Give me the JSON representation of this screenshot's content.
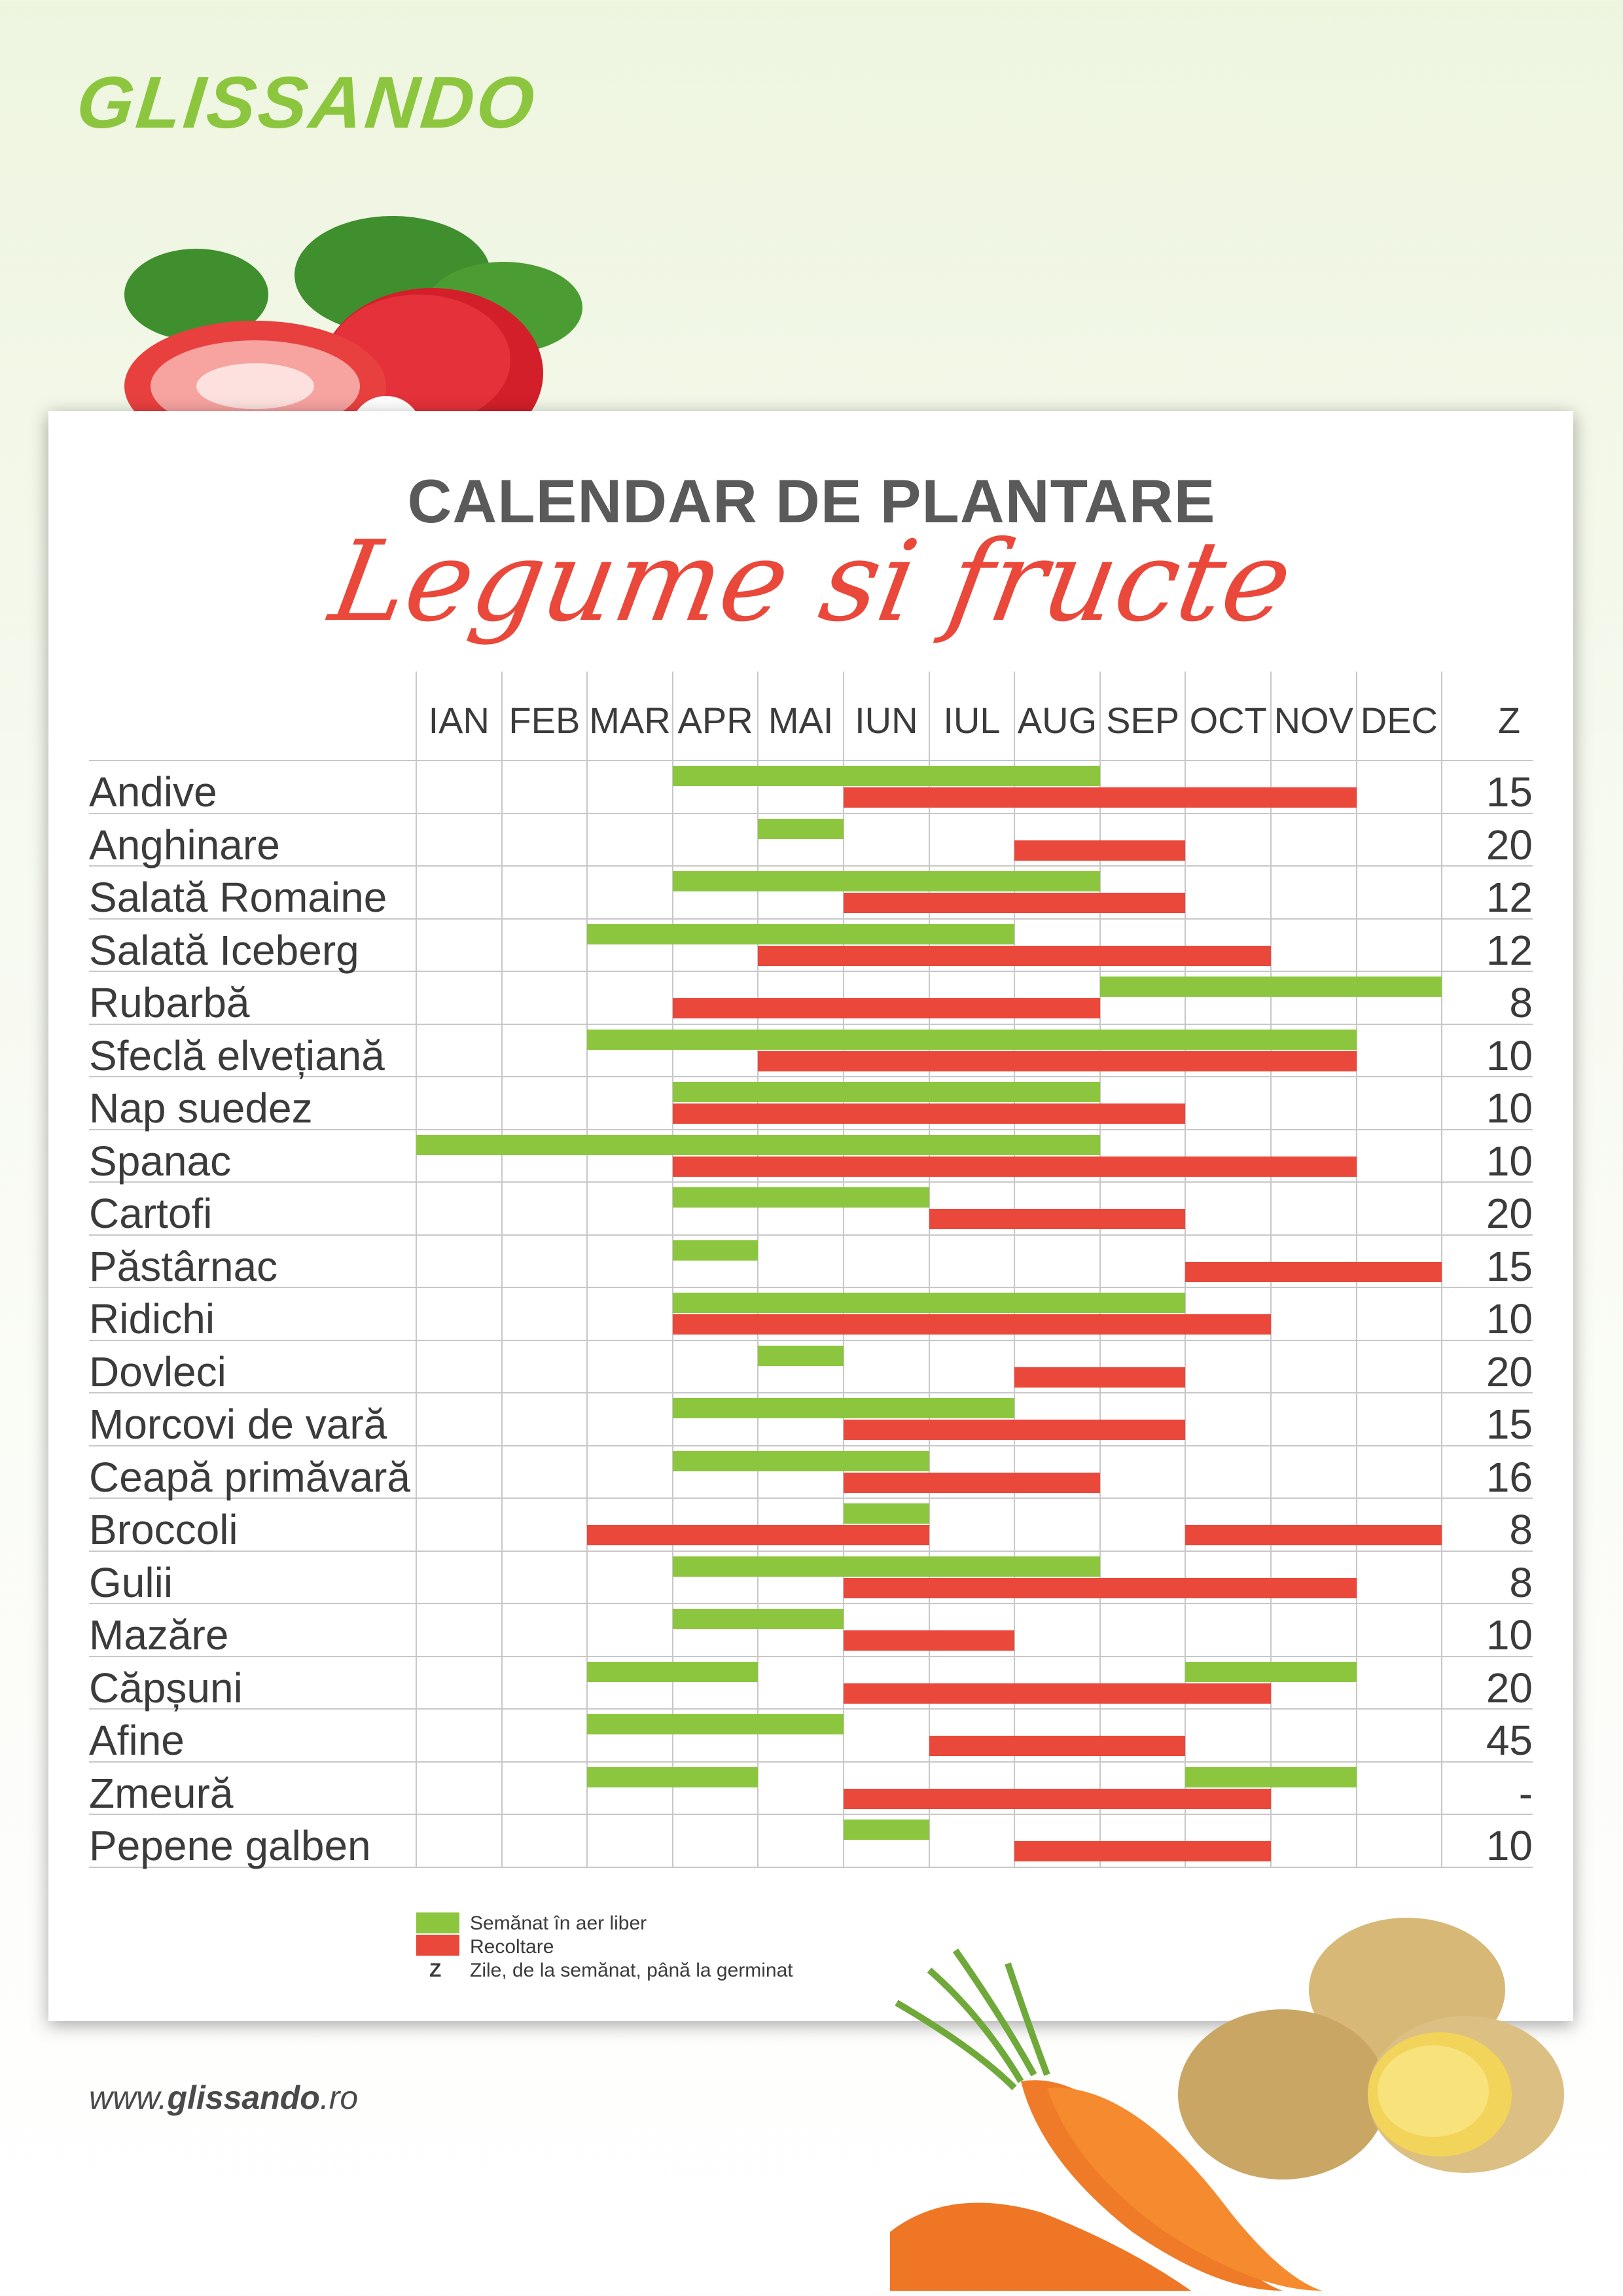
{
  "brand": {
    "logo": "GLISSANDO",
    "website_prefix": "www.",
    "website_brand": "glissando",
    "website_suffix": ".ro"
  },
  "title": {
    "line1": "CALENDAR DE PLANTARE",
    "line2": "Legume si fructe"
  },
  "months": [
    "IAN",
    "FEB",
    "MAR",
    "APR",
    "MAI",
    "IUN",
    "IUL",
    "AUG",
    "SEP",
    "OCT",
    "NOV",
    "DEC"
  ],
  "z_header": "Z",
  "colors": {
    "sow": "#8cc63f",
    "harvest": "#e9483a"
  },
  "rows": [
    {
      "name": "Andive",
      "z": "15",
      "sow": [
        [
          4,
          8
        ]
      ],
      "harvest": [
        [
          6,
          11
        ]
      ]
    },
    {
      "name": "Anghinare",
      "z": "20",
      "sow": [
        [
          5,
          5
        ]
      ],
      "harvest": [
        [
          8,
          9
        ]
      ]
    },
    {
      "name": "Salată Romaine",
      "z": "12",
      "sow": [
        [
          4,
          8
        ]
      ],
      "harvest": [
        [
          6,
          9
        ]
      ]
    },
    {
      "name": "Salată Iceberg",
      "z": "12",
      "sow": [
        [
          3,
          7
        ]
      ],
      "harvest": [
        [
          5,
          10
        ]
      ]
    },
    {
      "name": "Rubarbă",
      "z": "8",
      "sow": [
        [
          9,
          12
        ]
      ],
      "harvest": [
        [
          4,
          8
        ]
      ]
    },
    {
      "name": "Sfeclă elvețiană",
      "z": "10",
      "sow": [
        [
          3,
          11
        ]
      ],
      "harvest": [
        [
          5,
          11
        ]
      ]
    },
    {
      "name": "Nap suedez",
      "z": "10",
      "sow": [
        [
          4,
          8
        ]
      ],
      "harvest": [
        [
          4,
          9
        ]
      ]
    },
    {
      "name": "Spanac",
      "z": "10",
      "sow": [
        [
          1,
          8
        ]
      ],
      "harvest": [
        [
          4,
          11
        ]
      ]
    },
    {
      "name": "Cartofi",
      "z": "20",
      "sow": [
        [
          4,
          6
        ]
      ],
      "harvest": [
        [
          7,
          9
        ]
      ]
    },
    {
      "name": "Păstârnac",
      "z": "15",
      "sow": [
        [
          4,
          4
        ]
      ],
      "harvest": [
        [
          10,
          12
        ]
      ]
    },
    {
      "name": "Ridichi",
      "z": "10",
      "sow": [
        [
          4,
          9
        ]
      ],
      "harvest": [
        [
          4,
          10
        ]
      ]
    },
    {
      "name": "Dovleci",
      "z": "20",
      "sow": [
        [
          5,
          5
        ]
      ],
      "harvest": [
        [
          8,
          9
        ]
      ]
    },
    {
      "name": "Morcovi de vară",
      "z": "15",
      "sow": [
        [
          4,
          7
        ]
      ],
      "harvest": [
        [
          6,
          9
        ]
      ]
    },
    {
      "name": "Ceapă primăvară",
      "z": "16",
      "sow": [
        [
          4,
          6
        ]
      ],
      "harvest": [
        [
          6,
          8
        ]
      ]
    },
    {
      "name": "Broccoli",
      "z": "8",
      "sow": [
        [
          6,
          6
        ]
      ],
      "harvest": [
        [
          3,
          6
        ],
        [
          10,
          12
        ]
      ]
    },
    {
      "name": "Gulii",
      "z": "8",
      "sow": [
        [
          4,
          8
        ]
      ],
      "harvest": [
        [
          6,
          11
        ]
      ]
    },
    {
      "name": "Mazăre",
      "z": "10",
      "sow": [
        [
          4,
          5
        ]
      ],
      "harvest": [
        [
          6,
          7
        ]
      ]
    },
    {
      "name": "Căpșuni",
      "z": "20",
      "sow": [
        [
          3,
          4
        ],
        [
          10,
          11
        ]
      ],
      "harvest": [
        [
          6,
          10
        ]
      ]
    },
    {
      "name": "Afine",
      "z": "45",
      "sow": [
        [
          3,
          5
        ]
      ],
      "harvest": [
        [
          7,
          9
        ]
      ]
    },
    {
      "name": "Zmeură",
      "z": "-",
      "sow": [
        [
          3,
          4
        ],
        [
          10,
          11
        ]
      ],
      "harvest": [
        [
          6,
          10
        ]
      ]
    },
    {
      "name": "Pepene galben",
      "z": "10",
      "sow": [
        [
          6,
          6
        ]
      ],
      "harvest": [
        [
          8,
          10
        ]
      ]
    }
  ],
  "legend": {
    "sow_label": "Semănat în aer liber",
    "harvest_label": "Recoltare",
    "z_symbol": "Z",
    "z_label": "Zile, de la semănat, până la germinat"
  },
  "decorations": [
    "strawberry-image",
    "carrot-image",
    "potato-image"
  ]
}
